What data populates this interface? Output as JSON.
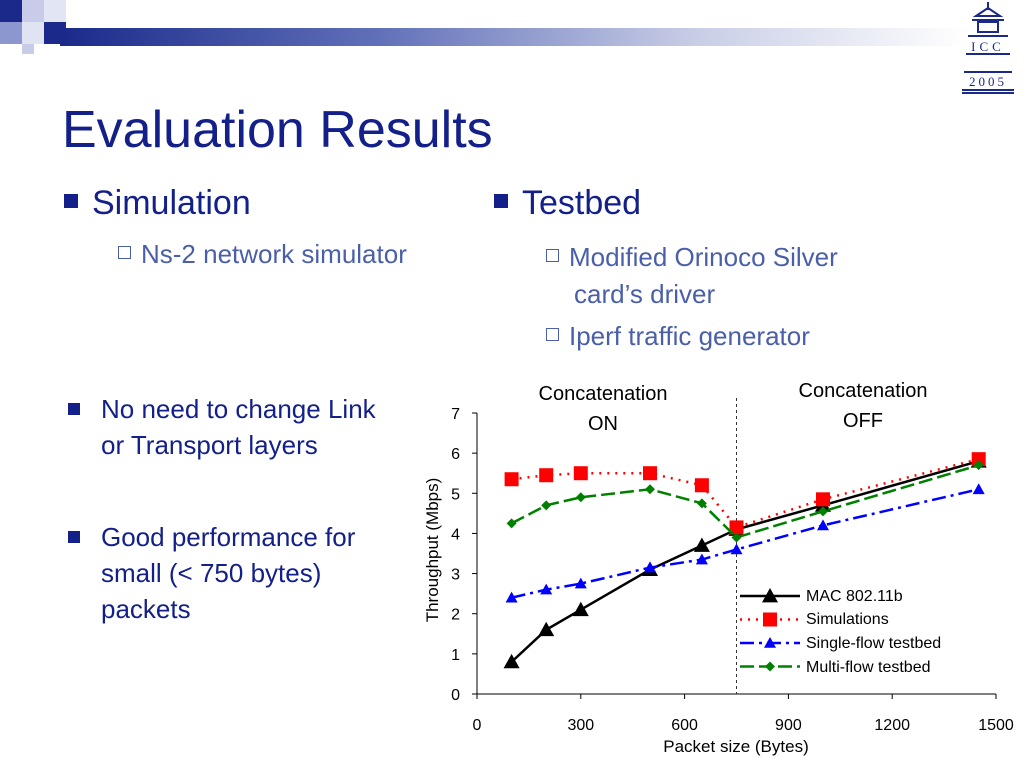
{
  "slide": {
    "title": "Evaluation Results",
    "simulation": {
      "label": "Simulation",
      "sub": "Ns-2 network simulator"
    },
    "testbed": {
      "label": "Testbed",
      "sub1_line1": "Modified Orinoco Silver",
      "sub1_line2": "card’s driver",
      "sub2": "Iperf traffic generator"
    },
    "point1": {
      "line1": "No need to change Link",
      "line2": "or Transport layers"
    },
    "point2": {
      "line1": "Good performance for",
      "line2": "small (< 750 bytes)",
      "line3": "packets"
    },
    "logo": {
      "line1": "ICC",
      "line2": "2005"
    },
    "colors": {
      "title": "#14208a",
      "sub": "#4a5fa8",
      "bar": "#1b2a8a"
    }
  },
  "chart_data": {
    "type": "line",
    "xlabel": "Packet size (Bytes)",
    "ylabel": "Throughput (Mbps)",
    "xlim": [
      0,
      1500
    ],
    "ylim": [
      0,
      7
    ],
    "xticks": [
      0,
      300,
      600,
      900,
      1200,
      1500
    ],
    "yticks": [
      0,
      1,
      2,
      3,
      4,
      5,
      6,
      7
    ],
    "grid": false,
    "legend_position": "bottom-right",
    "divider_x": 750,
    "annotations": [
      {
        "line1": "Concatenation",
        "line2": "ON"
      },
      {
        "line1": "Concatenation",
        "line2": "OFF"
      }
    ],
    "series": [
      {
        "name": "MAC 802.11b",
        "color": "#000000",
        "marker": "triangle",
        "dash": "",
        "x": [
          100,
          200,
          300,
          500,
          650,
          750,
          1000,
          1450
        ],
        "y": [
          0.8,
          1.6,
          2.1,
          3.1,
          3.7,
          4.1,
          4.7,
          5.8
        ]
      },
      {
        "name": "Simulations",
        "color": "#ff0000",
        "marker": "square",
        "dash": "2,6",
        "x": [
          100,
          200,
          300,
          500,
          650,
          750,
          1000,
          1450
        ],
        "y": [
          5.35,
          5.45,
          5.5,
          5.5,
          5.2,
          4.15,
          4.85,
          5.85
        ]
      },
      {
        "name": "Single-flow testbed",
        "color": "#0000ff",
        "marker": "triangle",
        "dash": "14,5,3,5",
        "x": [
          100,
          200,
          300,
          500,
          650,
          750,
          1000,
          1450
        ],
        "y": [
          2.4,
          2.6,
          2.75,
          3.15,
          3.35,
          3.6,
          4.2,
          5.1
        ]
      },
      {
        "name": "Multi-flow testbed",
        "color": "#008000",
        "marker": "diamond",
        "dash": "14,5",
        "x": [
          100,
          200,
          300,
          500,
          650,
          750,
          1000,
          1450
        ],
        "y": [
          4.25,
          4.7,
          4.9,
          5.1,
          4.75,
          3.9,
          4.55,
          5.7
        ]
      }
    ]
  }
}
